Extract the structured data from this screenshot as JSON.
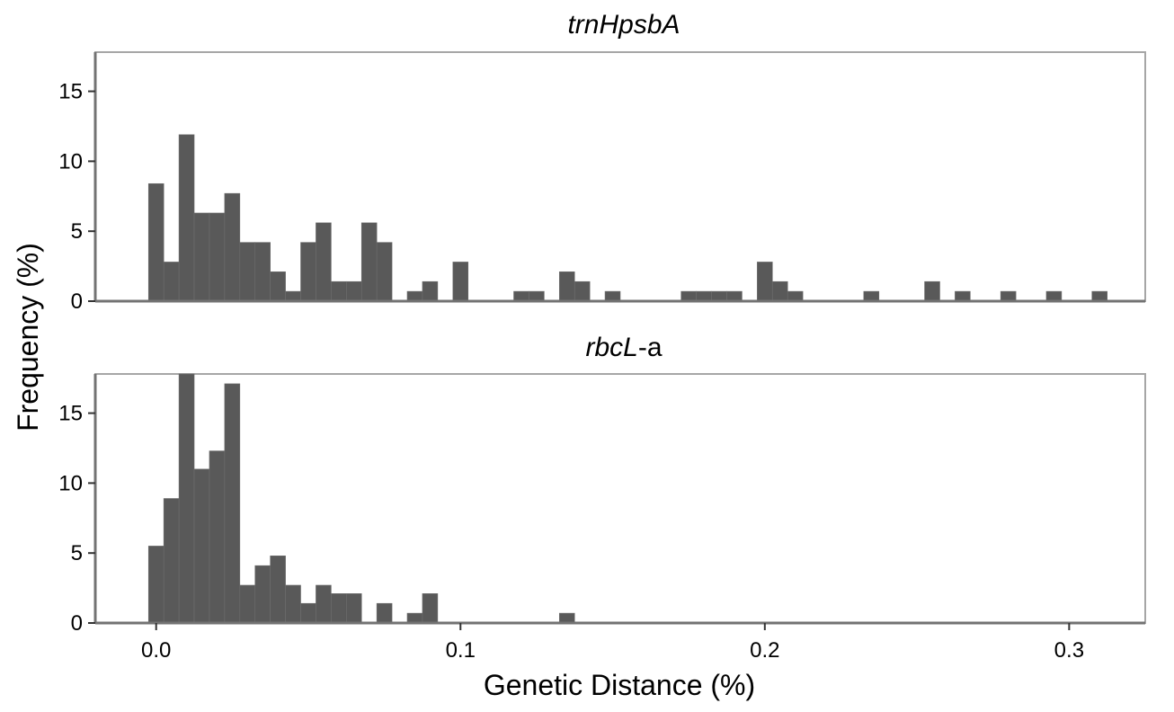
{
  "chart_data": {
    "type": "bar",
    "xlabel": "Genetic Distance (%)",
    "ylabel": "Frequency (%)",
    "x_ticks": [
      0.0,
      0.1,
      0.2,
      0.3
    ],
    "x_tick_labels": [
      "0.0",
      "0.1",
      "0.2",
      "0.3"
    ],
    "y_ticks": [
      0,
      5,
      10,
      15
    ],
    "y_tick_labels": [
      "0",
      "5",
      "10",
      "15"
    ],
    "xlim": [
      -0.02,
      0.325
    ],
    "ylim": [
      0,
      17.8
    ],
    "bin_width": 0.005,
    "grid": false,
    "panels": [
      {
        "title_parts": [
          {
            "text": "trnHpsbA",
            "italic": true
          }
        ],
        "bin_centers": [
          0.0,
          0.005,
          0.01,
          0.015,
          0.02,
          0.025,
          0.03,
          0.035,
          0.04,
          0.045,
          0.05,
          0.055,
          0.06,
          0.065,
          0.07,
          0.075,
          0.085,
          0.09,
          0.1,
          0.12,
          0.125,
          0.135,
          0.14,
          0.15,
          0.175,
          0.18,
          0.185,
          0.19,
          0.2,
          0.205,
          0.21,
          0.235,
          0.255,
          0.265,
          0.28,
          0.295,
          0.31
        ],
        "values": [
          8.4,
          2.8,
          11.9,
          6.3,
          6.3,
          7.7,
          4.2,
          4.2,
          2.1,
          0.7,
          4.2,
          5.6,
          1.4,
          1.4,
          5.6,
          4.2,
          0.7,
          1.4,
          2.8,
          0.7,
          0.7,
          2.1,
          1.4,
          0.7,
          0.7,
          0.7,
          0.7,
          0.7,
          2.8,
          1.4,
          0.7,
          0.7,
          1.4,
          0.7,
          0.7,
          0.7,
          0.7
        ]
      },
      {
        "title_parts": [
          {
            "text": "rbcL",
            "italic": true
          },
          {
            "text": "-a",
            "italic": false
          }
        ],
        "bin_centers": [
          0.0,
          0.005,
          0.01,
          0.015,
          0.02,
          0.025,
          0.03,
          0.035,
          0.04,
          0.045,
          0.05,
          0.055,
          0.06,
          0.065,
          0.075,
          0.085,
          0.09,
          0.135
        ],
        "values": [
          5.5,
          8.9,
          17.8,
          11.0,
          12.3,
          17.1,
          2.7,
          4.1,
          4.8,
          2.7,
          1.4,
          2.7,
          2.1,
          2.1,
          1.4,
          0.7,
          2.1,
          0.7
        ]
      }
    ]
  }
}
